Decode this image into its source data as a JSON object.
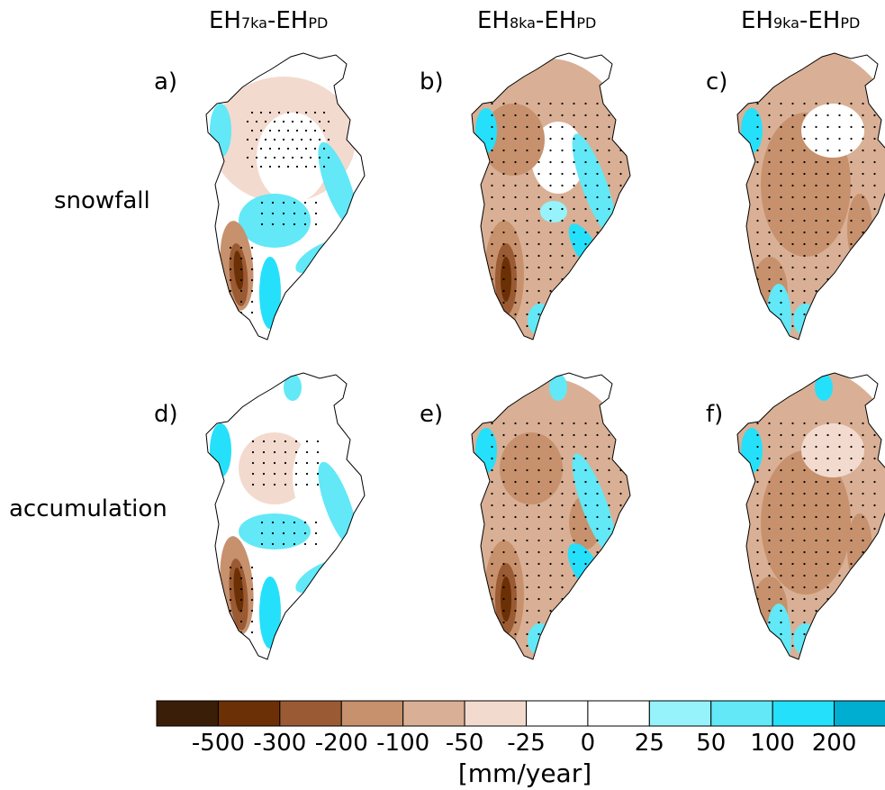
{
  "columns": [
    {
      "main_a": "EH",
      "sub_a": "7ka",
      "dash": "-",
      "main_b": "EH",
      "sub_b": "PD"
    },
    {
      "main_a": "EH",
      "sub_a": "8ka",
      "dash": "-",
      "main_b": "EH",
      "sub_b": "PD"
    },
    {
      "main_a": "EH",
      "sub_a": "9ka",
      "dash": "-",
      "main_b": "EH",
      "sub_b": "PD"
    }
  ],
  "rows": [
    "snowfall",
    "accumulation"
  ],
  "panels": [
    "a)",
    "b)",
    "c)",
    "d)",
    "e)",
    "f)"
  ],
  "colorbar": {
    "unit": "[mm/year]",
    "tick_labels": [
      "-500",
      "-300",
      "-200",
      "-100",
      "-50",
      "-25",
      "0",
      "25",
      "50",
      "100",
      "200"
    ],
    "colors": [
      "#3b1e08",
      "#6b3005",
      "#9a5a33",
      "#c6916c",
      "#d9b095",
      "#f3dace",
      "#ffffff",
      "#ffffff",
      "#96f3fb",
      "#62e8f7",
      "#25e0fb",
      "#00aed1"
    ]
  },
  "chart_data": {
    "type": "heatmap",
    "description_type": "map-panels",
    "columns": [
      "EH7ka-EHPD",
      "EH8ka-EHPD",
      "EH9ka-EHPD"
    ],
    "rows": [
      "snowfall",
      "accumulation"
    ],
    "panels": [
      "a)",
      "b)",
      "c)",
      "d)",
      "e)",
      "f)"
    ],
    "color_levels": [
      -500,
      -300,
      -200,
      -100,
      -50,
      -25,
      0,
      25,
      50,
      100,
      200
    ],
    "unit": "[mm/year]"
  }
}
